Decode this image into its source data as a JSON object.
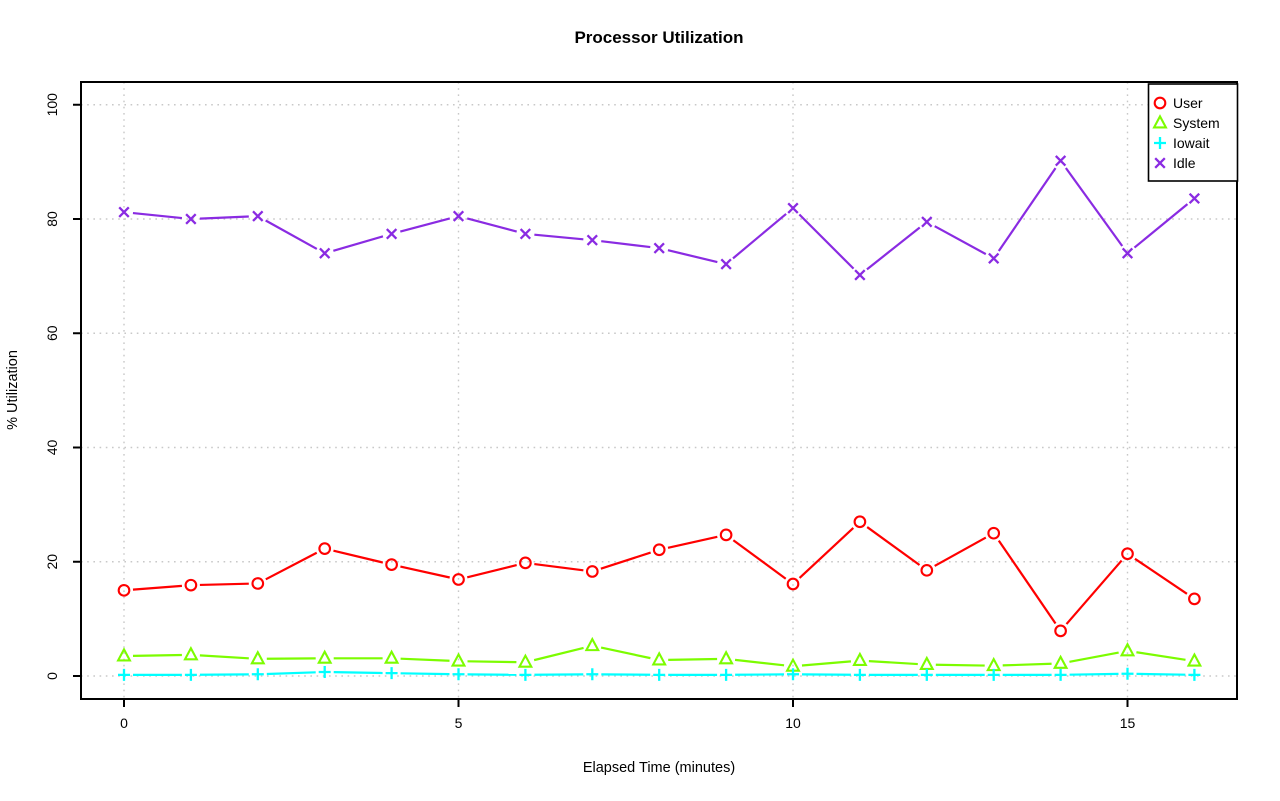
{
  "chart_data": {
    "type": "line",
    "title": "Processor Utilization",
    "xlabel": "Elapsed Time (minutes)",
    "ylabel": "% Utilization",
    "x": [
      0,
      1,
      2,
      3,
      4,
      5,
      6,
      7,
      8,
      9,
      10,
      11,
      12,
      13,
      14,
      15,
      16
    ],
    "xlim": [
      0,
      16
    ],
    "ylim": [
      0,
      100
    ],
    "xticks": [
      0,
      5,
      10,
      15
    ],
    "yticks": [
      0,
      20,
      40,
      60,
      80,
      100
    ],
    "grid": true,
    "grid_color": "#C8C8C8",
    "legend_position": "top-right",
    "series": [
      {
        "name": "User",
        "color": "#FF0000",
        "marker": "circle",
        "values": [
          15.0,
          15.9,
          16.2,
          22.3,
          19.5,
          16.9,
          19.8,
          18.3,
          22.1,
          24.7,
          16.1,
          27.0,
          18.5,
          25.0,
          7.9,
          21.4,
          13.5
        ]
      },
      {
        "name": "System",
        "color": "#7CFC00",
        "marker": "triangle",
        "values": [
          3.5,
          3.7,
          3.0,
          3.1,
          3.1,
          2.6,
          2.4,
          5.3,
          2.8,
          3.0,
          1.7,
          2.7,
          2.0,
          1.8,
          2.2,
          4.4,
          2.6
        ]
      },
      {
        "name": "Iowait",
        "color": "#00FFFF",
        "marker": "plus",
        "values": [
          0.2,
          0.2,
          0.3,
          0.7,
          0.5,
          0.3,
          0.2,
          0.3,
          0.2,
          0.2,
          0.3,
          0.2,
          0.2,
          0.2,
          0.2,
          0.4,
          0.2
        ]
      },
      {
        "name": "Idle",
        "color": "#8A2BE2",
        "marker": "x",
        "values": [
          81.2,
          80.0,
          80.5,
          74.0,
          77.4,
          80.5,
          77.4,
          76.3,
          74.9,
          72.1,
          81.9,
          70.2,
          79.5,
          73.1,
          90.2,
          74.0,
          83.6
        ]
      }
    ]
  }
}
